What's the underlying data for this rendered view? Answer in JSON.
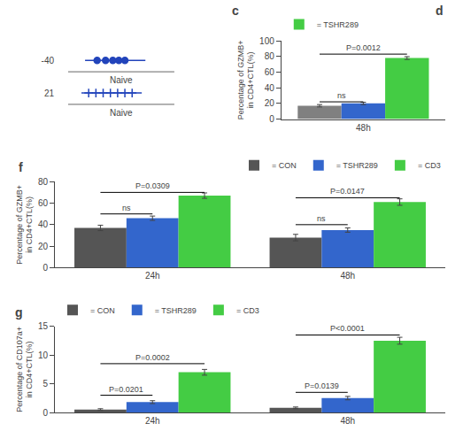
{
  "chart_data": [
    {
      "type": "strip",
      "xlim": [
        -0.5,
        0.6
      ],
      "tick_labels": "y",
      "grid": false,
      "series": [
        {
          "label": "-40",
          "values": [
            -0.15,
            -0.08,
            -0.02,
            0.03,
            0.08
          ],
          "whisker": [
            -0.25,
            0.25
          ],
          "marker": "circle",
          "color": "#2244bb",
          "note": "Naive"
        },
        {
          "label": "21",
          "values": [
            -0.22,
            -0.16,
            -0.1,
            -0.04,
            0.02,
            0.08,
            0.14
          ],
          "whisker": [
            -0.28,
            0.22
          ],
          "marker": "cross",
          "color": "#2244bb",
          "note": "Naive"
        }
      ],
      "annotations": [
        {
          "text": "c"
        },
        {
          "text": "d"
        }
      ]
    },
    {
      "type": "bar",
      "categories": [
        "48h"
      ],
      "ylabel": "Percentage of GZMB+\nin CD4+CTL(%)",
      "ylim": [
        0,
        100
      ],
      "yticks": [
        0,
        20,
        40,
        60,
        80,
        100
      ],
      "grid": false,
      "legend": "upper left",
      "series": [
        {
          "color": "#808080",
          "values": [
            17
          ],
          "errors": [
            1.5
          ]
        },
        {
          "color": "#3366cc",
          "values": [
            20
          ],
          "errors": [
            1.5
          ]
        },
        {
          "name": "= TSHR289",
          "color": "#44cc44",
          "values": [
            78
          ],
          "errors": [
            1.8
          ]
        }
      ],
      "annotations": [
        {
          "text": "ns",
          "category": 0,
          "from": 0,
          "to": 1,
          "y": 22
        },
        {
          "text": "P=0.0012",
          "category": 0,
          "from": 0,
          "to": 2,
          "y": 83
        }
      ]
    },
    {
      "type": "bar",
      "title": "f",
      "categories": [
        "24h",
        "48h"
      ],
      "ylabel": "Percentage of GZMB+\nin CD4+CTL(%)",
      "ylim": [
        0,
        80
      ],
      "yticks": [
        0,
        20,
        40,
        60,
        80
      ],
      "grid": false,
      "legend": "upper right",
      "series": [
        {
          "name": "= CON",
          "color": "#555555",
          "values": [
            37,
            28
          ],
          "errors": [
            2.5,
            3.0
          ]
        },
        {
          "name": "= TSHR289",
          "color": "#3366cc",
          "values": [
            46,
            35
          ],
          "errors": [
            2.0,
            2.0
          ]
        },
        {
          "name": "= CD3",
          "color": "#44cc44",
          "values": [
            67,
            61
          ],
          "errors": [
            2.5,
            3.0
          ]
        }
      ],
      "annotations": [
        {
          "text": "ns",
          "category": 0,
          "from": 0,
          "to": 1,
          "y": 50
        },
        {
          "text": "P=0.0309",
          "category": 0,
          "from": 0,
          "to": 2,
          "y": 70
        },
        {
          "text": "ns",
          "category": 1,
          "from": 0,
          "to": 1,
          "y": 40
        },
        {
          "text": "P=0.0147",
          "category": 1,
          "from": 0,
          "to": 2,
          "y": 65
        }
      ]
    },
    {
      "type": "bar",
      "title": "g",
      "categories": [
        "24h",
        "48h"
      ],
      "ylabel": "Percentage of CD107a+\nin CD4+CTL(%)",
      "ylim": [
        0,
        15
      ],
      "yticks": [
        0,
        5,
        10,
        15
      ],
      "grid": false,
      "legend": "upper left",
      "series": [
        {
          "name": "= CON",
          "color": "#555555",
          "values": [
            0.5,
            0.8
          ],
          "errors": [
            0.15,
            0.15
          ]
        },
        {
          "name": "= TSHR289",
          "color": "#3366cc",
          "values": [
            1.8,
            2.5
          ],
          "errors": [
            0.25,
            0.3
          ]
        },
        {
          "name": "= CD3",
          "color": "#44cc44",
          "values": [
            7.0,
            12.5
          ],
          "errors": [
            0.5,
            0.6
          ]
        }
      ],
      "annotations": [
        {
          "text": "P=0.0201",
          "category": 0,
          "from": 0,
          "to": 1,
          "y": 3.0
        },
        {
          "text": "P=0.0002",
          "category": 0,
          "from": 0,
          "to": 2,
          "y": 8.5
        },
        {
          "text": "P=0.0139",
          "category": 1,
          "from": 0,
          "to": 1,
          "y": 3.5
        },
        {
          "text": "P<0.0001",
          "category": 1,
          "from": 0,
          "to": 2,
          "y": 13.5
        }
      ]
    }
  ]
}
